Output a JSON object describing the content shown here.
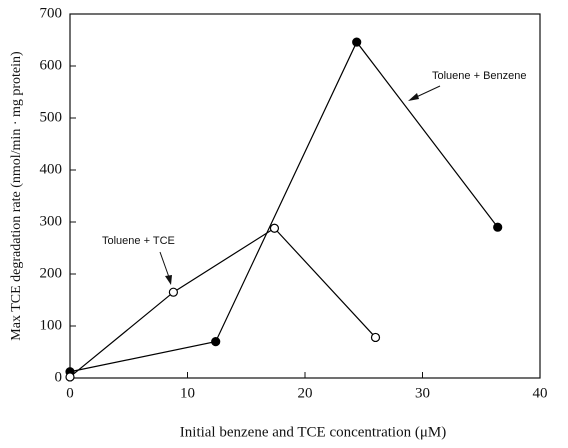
{
  "chart_data": {
    "type": "line",
    "xlabel": "Initial benzene and TCE concentration (μM)",
    "ylabel": "Max  TCE degradation rate (nmol/min · mg protein)",
    "xlim": [
      0,
      40
    ],
    "xticks": [
      0,
      10,
      20,
      30,
      40
    ],
    "ylim": [
      0,
      700
    ],
    "yticks": [
      0,
      100,
      200,
      300,
      400,
      500,
      600,
      700
    ],
    "series": [
      {
        "name": "Toluene + Benzene",
        "color": "#000000",
        "marker": "filled",
        "x": [
          0,
          12.4,
          24.4,
          36.4
        ],
        "values": [
          12,
          70,
          646,
          290
        ]
      },
      {
        "name": "Toluene + TCE",
        "color": "#000000",
        "marker": "open",
        "x": [
          0,
          8.8,
          17.4,
          26
        ],
        "values": [
          2,
          165,
          288,
          78
        ]
      }
    ]
  }
}
